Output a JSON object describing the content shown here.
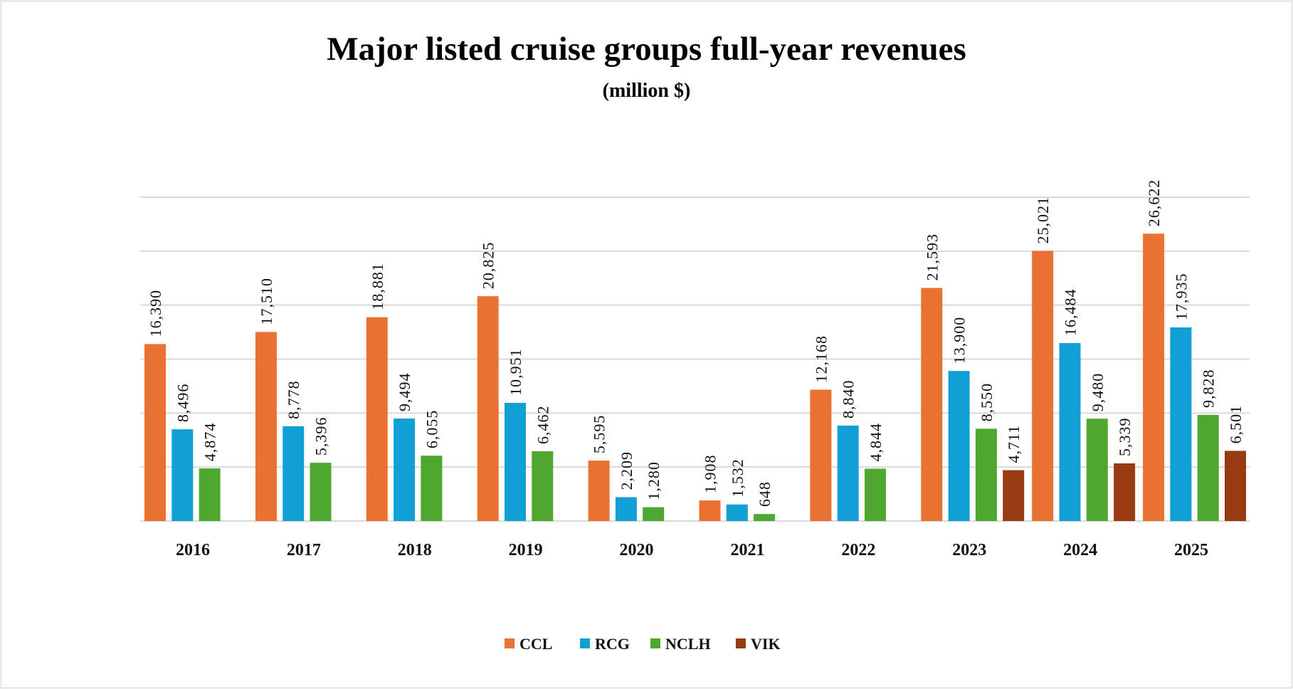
{
  "chart_data": {
    "type": "bar",
    "title": "Major listed cruise groups full-year revenues",
    "subtitle": "(million $)",
    "categories": [
      "2016",
      "2017",
      "2018",
      "2019",
      "2020",
      "2021",
      "2022",
      "2023",
      "2024",
      "2025"
    ],
    "series": [
      {
        "name": "CCL",
        "color": "#E97132",
        "values": [
          16390,
          17510,
          18881,
          20825,
          5595,
          1908,
          12168,
          21593,
          25021,
          26622
        ]
      },
      {
        "name": "RCG",
        "color": "#129FD6",
        "values": [
          8496,
          8778,
          9494,
          10951,
          2209,
          1532,
          8840,
          13900,
          16484,
          17935
        ]
      },
      {
        "name": "NCLH",
        "color": "#4EA72E",
        "values": [
          4874,
          5396,
          6055,
          6462,
          1280,
          648,
          4844,
          8550,
          9480,
          9828
        ]
      },
      {
        "name": "VIK",
        "color": "#983B12",
        "values": [
          null,
          null,
          null,
          null,
          null,
          null,
          null,
          4711,
          5339,
          6501
        ]
      }
    ],
    "ylim": [
      0,
      30000
    ],
    "ytick_step": 5000,
    "y_axis_labels_shown": false,
    "grid": true,
    "legend": "bottom",
    "data_labels": "rotated vertical, above bars"
  }
}
